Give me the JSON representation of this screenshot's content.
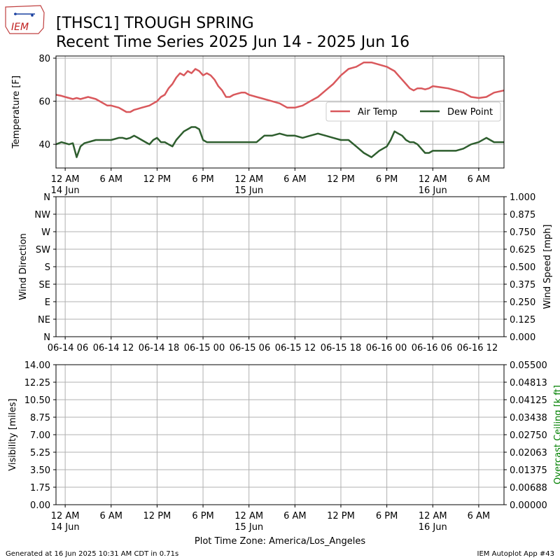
{
  "header": {
    "logo_text": "IEM",
    "title_line1": "[THSC1] TROUGH SPRING",
    "title_line2": "Recent Time Series 2025 Jun 14 - 2025 Jun 16"
  },
  "footer": {
    "left": "Generated at 16 Jun 2025 10:31 AM CDT in 0.71s",
    "right": "IEM Autoplot App #43"
  },
  "colors": {
    "air_temp": "#d9585c",
    "dew_point": "#2e5e2e",
    "grid": "#b0b0b0",
    "ceiling_label": "#008000"
  },
  "chart_data": [
    {
      "type": "line",
      "panel": "temperature",
      "ylabel": "Temperature [F]",
      "ylim": [
        29,
        81
      ],
      "yticks": [
        40,
        60,
        80
      ],
      "xlim": [
        -1.2,
        57.3
      ],
      "xunit": "hours since 2025-06-14 00:00 America/Los_Angeles",
      "xtick_hours": [
        0,
        6,
        12,
        18,
        24,
        30,
        36,
        42,
        48,
        54
      ],
      "xtick_labels": [
        [
          "12 AM",
          "14 Jun"
        ],
        [
          "6 AM",
          ""
        ],
        [
          "12 PM",
          ""
        ],
        [
          "6 PM",
          ""
        ],
        [
          "12 AM",
          "15 Jun"
        ],
        [
          "6 AM",
          ""
        ],
        [
          "12 PM",
          ""
        ],
        [
          "6 PM",
          ""
        ],
        [
          "12 AM",
          "16 Jun"
        ],
        [
          "6 AM",
          ""
        ]
      ],
      "grid": true,
      "legend_position": "center-right",
      "series": [
        {
          "name": "Air Temp",
          "color": "#d9585c",
          "x": [
            -1.2,
            -0.5,
            0,
            0.5,
            1,
            1.5,
            2,
            2.5,
            3,
            3.5,
            4,
            4.5,
            5,
            5.5,
            6,
            6.5,
            7,
            7.5,
            8,
            8.5,
            9,
            9.5,
            10,
            10.5,
            11,
            11.5,
            12,
            12.5,
            13,
            13.5,
            14,
            14.5,
            15,
            15.5,
            16,
            16.5,
            17,
            17.5,
            18,
            18.5,
            19,
            19.5,
            20,
            20.5,
            21,
            21.5,
            22,
            22.5,
            23,
            23.5,
            24,
            25,
            26,
            27,
            28,
            29,
            30,
            31,
            32,
            33,
            34,
            35,
            36,
            37,
            38,
            39,
            40,
            41,
            42,
            42.5,
            43,
            43.5,
            44,
            44.5,
            45,
            45.5,
            46,
            46.5,
            47,
            47.5,
            48,
            49,
            50,
            51,
            52,
            53,
            54,
            55,
            56,
            57.3
          ],
          "y": [
            63,
            62.5,
            62,
            61.5,
            61,
            61.5,
            61,
            61.5,
            62,
            61.5,
            61,
            60,
            59,
            58,
            58,
            57.5,
            57,
            56,
            55,
            55,
            56,
            56.5,
            57,
            57.5,
            58,
            59,
            60,
            62,
            63,
            66,
            68,
            71,
            73,
            72,
            74,
            73,
            75,
            74,
            72,
            73,
            72,
            70,
            67,
            65,
            62,
            62,
            63,
            63.5,
            64,
            64,
            63,
            62,
            61,
            60,
            59,
            57,
            57,
            58,
            60,
            62,
            65,
            68,
            72,
            75,
            76,
            78,
            78,
            77,
            76,
            75,
            74,
            72,
            70,
            68,
            66,
            65,
            66,
            66,
            65.5,
            66,
            67,
            66.5,
            66,
            65,
            64,
            62,
            61.5,
            62,
            64,
            65
          ]
        },
        {
          "name": "Dew Point",
          "color": "#2e5e2e",
          "x": [
            -1.2,
            -0.5,
            0,
            0.5,
            1,
            1.5,
            2,
            2.5,
            3,
            3.5,
            4,
            4.5,
            5,
            5.5,
            6,
            6.5,
            7,
            7.5,
            8,
            8.5,
            9,
            9.5,
            10,
            10.5,
            11,
            11.5,
            12,
            12.5,
            13,
            13.5,
            14,
            14.5,
            15,
            15.5,
            16,
            16.5,
            17,
            17.5,
            18,
            18.5,
            19,
            19.5,
            20,
            20.5,
            21,
            21.5,
            22,
            22.5,
            23,
            23.5,
            24,
            25,
            26,
            27,
            28,
            29,
            30,
            31,
            32,
            33,
            34,
            35,
            36,
            37,
            38,
            39,
            40,
            41,
            42,
            42.5,
            43,
            43.5,
            44,
            44.5,
            45,
            45.5,
            46,
            46.5,
            47,
            47.5,
            48,
            49,
            50,
            51,
            52,
            53,
            54,
            55,
            56,
            57.3
          ],
          "y": [
            40,
            41,
            40.5,
            40,
            40.5,
            34,
            39,
            40.5,
            41,
            41.5,
            42,
            42,
            42,
            42,
            42,
            42.5,
            43,
            43,
            42.5,
            43,
            44,
            43,
            42,
            41,
            40,
            42,
            43,
            41,
            41,
            40,
            39,
            42,
            44,
            46,
            47,
            48,
            48,
            47,
            42,
            41,
            41,
            41,
            41,
            41,
            41,
            41,
            41,
            41,
            41,
            41,
            41,
            41,
            44,
            44,
            45,
            44,
            44,
            43,
            44,
            45,
            44,
            43,
            42,
            42,
            39,
            36,
            34,
            37,
            39,
            42,
            46,
            45,
            44,
            42,
            41,
            41,
            40,
            38,
            36,
            36,
            37,
            37,
            37,
            37,
            38,
            40,
            41,
            43,
            41,
            41
          ]
        }
      ]
    },
    {
      "type": "line",
      "panel": "wind",
      "ylabel": "Wind Direction",
      "y2label": "Wind Speed [mph]",
      "ytick_labels": [
        "N",
        "NE",
        "E",
        "SE",
        "S",
        "SW",
        "W",
        "NW",
        "N"
      ],
      "y2lim": [
        0,
        1
      ],
      "y2tick_labels": [
        "0.000",
        "0.125",
        "0.250",
        "0.375",
        "0.500",
        "0.625",
        "0.750",
        "0.875",
        "1.000"
      ],
      "xtick_labels": [
        "06-14 06",
        "06-14 12",
        "06-14 18",
        "06-15 00",
        "06-15 06",
        "06-15 12",
        "06-15 18",
        "06-16 00",
        "06-16 06",
        "06-16 12"
      ],
      "grid": true,
      "series": []
    },
    {
      "type": "line",
      "panel": "visibility",
      "ylabel": "Visibility [miles]",
      "y2label": "Overcast Ceiling [k ft]",
      "ylim": [
        0,
        14
      ],
      "ytick_labels": [
        "0.00",
        "1.75",
        "3.50",
        "5.25",
        "7.00",
        "8.75",
        "10.50",
        "12.25",
        "14.00"
      ],
      "y2lim": [
        0,
        0.055
      ],
      "y2tick_labels": [
        "0.00000",
        "0.00688",
        "0.01375",
        "0.02063",
        "0.02750",
        "0.03438",
        "0.04125",
        "0.04813",
        "0.05500"
      ],
      "xtick_labels": [
        [
          "12 AM",
          "14 Jun"
        ],
        [
          "6 AM",
          ""
        ],
        [
          "12 PM",
          ""
        ],
        [
          "6 PM",
          ""
        ],
        [
          "12 AM",
          "15 Jun"
        ],
        [
          "6 AM",
          ""
        ],
        [
          "12 PM",
          ""
        ],
        [
          "6 PM",
          ""
        ],
        [
          "12 AM",
          "16 Jun"
        ],
        [
          "6 AM",
          ""
        ]
      ],
      "xlabel": "Plot Time Zone: America/Los_Angeles",
      "grid": true,
      "series": []
    }
  ]
}
